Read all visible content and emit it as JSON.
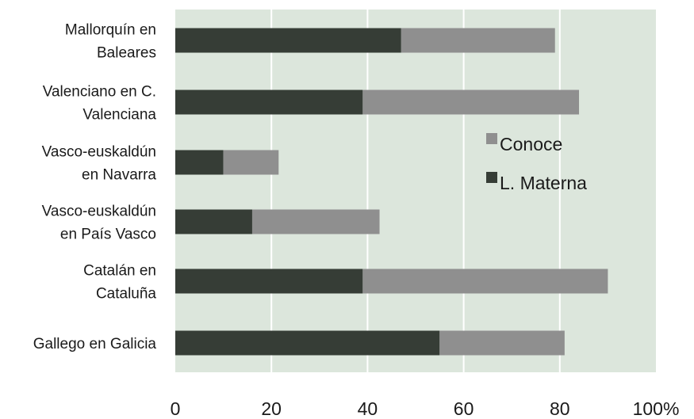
{
  "chart_data": {
    "type": "bar",
    "orientation": "horizontal",
    "stacked": true,
    "categories": [
      [
        "Mallorquín en",
        "Baleares"
      ],
      [
        "Valenciano en C.",
        "Valenciana"
      ],
      [
        "Vasco-euskaldún",
        "en Navarra"
      ],
      [
        "Vasco-euskaldún",
        "en País Vasco"
      ],
      [
        "Catalán en",
        "Cataluña"
      ],
      [
        "Gallego en Galicia"
      ]
    ],
    "series": [
      {
        "name": "L. Materna",
        "color": "#363d36",
        "values": [
          47,
          39,
          10,
          16,
          39,
          55
        ]
      },
      {
        "name": "Conoce",
        "color": "#8f8f8f",
        "values": [
          32,
          45,
          11.5,
          26.5,
          51,
          26
        ]
      }
    ],
    "xlim": [
      0,
      100
    ],
    "x_ticks": [
      "0",
      "20",
      "40",
      "60",
      "80",
      "100%"
    ],
    "grid": true,
    "plot_background": "#dce6dc",
    "legend_placement": "right-center",
    "legend_order": [
      "Conoce",
      "L. Materna"
    ]
  }
}
